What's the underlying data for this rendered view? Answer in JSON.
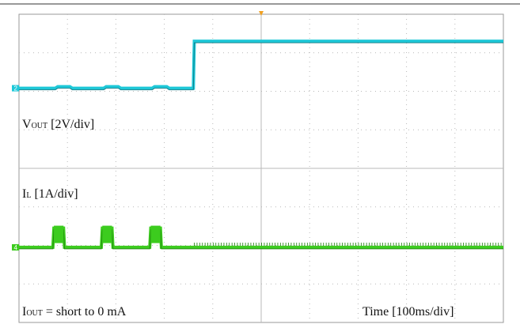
{
  "chart_data": {
    "type": "line",
    "x_unit": "div",
    "xlim": [
      0,
      10
    ],
    "ylim": [
      0,
      8
    ],
    "grid": true,
    "colors": {
      "vout": "#1ec8d8",
      "vout_edge": "#0a6f78",
      "il": "#3ccc1e",
      "il_edge": "#1a7a0a",
      "trigger": "#f0a020",
      "grid": "#b8b8b8",
      "frame": "#999999"
    },
    "labels": {
      "vout": {
        "main": "V",
        "sub": "OUT",
        "rest": " [2V/div]"
      },
      "il": {
        "main": "I",
        "sub": "L",
        "rest": " [1A/div]"
      },
      "iout": {
        "main": "I",
        "sub": "OUT",
        "rest": " = short to 0 mA"
      },
      "time": "Time [100ms/div]"
    },
    "markers": {
      "ch2": "2",
      "ch4": "4"
    },
    "series": [
      {
        "channel": "vout",
        "points": [
          [
            0,
            6.08
          ],
          [
            0.75,
            6.08
          ],
          [
            0.8,
            6.12
          ],
          [
            1.05,
            6.12
          ],
          [
            1.1,
            6.08
          ],
          [
            1.75,
            6.08
          ],
          [
            1.8,
            6.12
          ],
          [
            2.05,
            6.12
          ],
          [
            2.1,
            6.08
          ],
          [
            2.75,
            6.08
          ],
          [
            2.8,
            6.12
          ],
          [
            3.05,
            6.12
          ],
          [
            3.1,
            6.08
          ],
          [
            3.6,
            6.08
          ],
          [
            3.62,
            7.3
          ],
          [
            10,
            7.3
          ]
        ]
      },
      {
        "channel": "il",
        "points": [
          [
            0,
            1.95
          ],
          [
            0.7,
            1.95
          ],
          [
            0.72,
            2.45
          ],
          [
            0.92,
            2.45
          ],
          [
            0.94,
            1.95
          ],
          [
            1.7,
            1.95
          ],
          [
            1.72,
            2.45
          ],
          [
            1.92,
            2.45
          ],
          [
            1.94,
            1.95
          ],
          [
            2.7,
            1.95
          ],
          [
            2.72,
            2.45
          ],
          [
            2.92,
            2.45
          ],
          [
            2.94,
            1.95
          ],
          [
            10,
            1.95
          ]
        ],
        "pulses": [
          [
            0.72,
            0.92
          ],
          [
            1.72,
            1.92
          ],
          [
            2.72,
            2.92
          ]
        ],
        "ripple_start": 3.62,
        "ripple_height": 0.08
      }
    ]
  }
}
